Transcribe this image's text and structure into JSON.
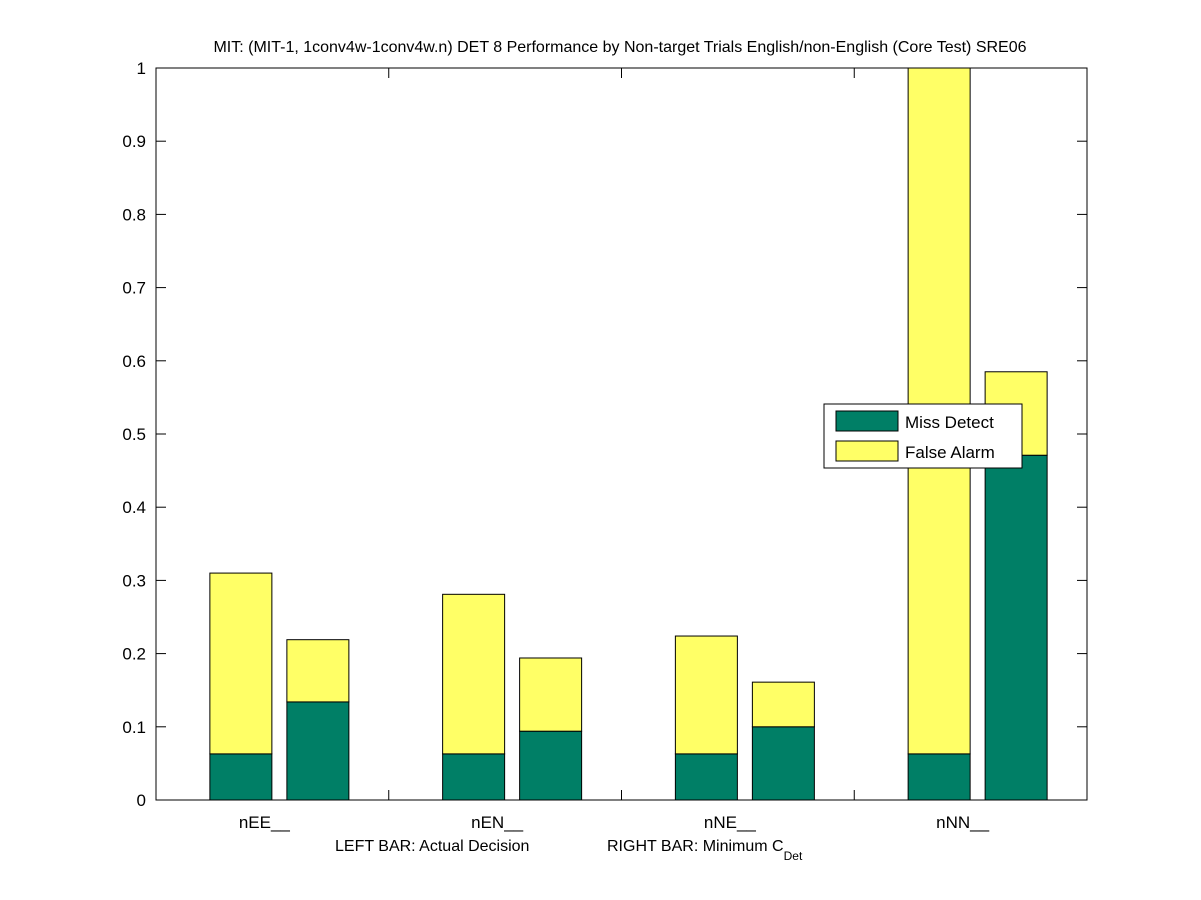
{
  "chart_data": {
    "type": "bar",
    "stacked": true,
    "title": "MIT: (MIT-1, 1conv4w-1conv4w.n) DET 8 Performance by Non-target Trials English/non-English (Core Test) SRE06",
    "xlabel_left": "LEFT BAR: Actual Decision",
    "xlabel_right": "RIGHT BAR: Minimum C",
    "xlabel_right_subscript": "Det",
    "ylabel": "",
    "ylim": [
      0,
      1
    ],
    "yticks": [
      "0",
      "0.1",
      "0.2",
      "0.3",
      "0.4",
      "0.5",
      "0.6",
      "0.7",
      "0.8",
      "0.9",
      "1"
    ],
    "categories": [
      "nEE__",
      "nEN__",
      "nNE__",
      "nNN__"
    ],
    "bar_roles": [
      "Actual Decision",
      "Minimum CDet"
    ],
    "series": [
      {
        "name": "Miss Detect",
        "color": "#007f66",
        "actual": [
          0.063,
          0.063,
          0.063,
          0.063
        ],
        "minimum": [
          0.134,
          0.094,
          0.1,
          0.471
        ]
      },
      {
        "name": "False Alarm",
        "color": "#ffff66",
        "actual": [
          0.247,
          0.218,
          0.161,
          0.937
        ],
        "minimum": [
          0.085,
          0.1,
          0.061,
          0.114
        ]
      }
    ],
    "totals": {
      "actual": [
        0.31,
        0.281,
        0.224,
        1.0
      ],
      "minimum": [
        0.219,
        0.194,
        0.161,
        0.585
      ]
    },
    "legend": {
      "placement": "center-right",
      "entries": [
        "Miss Detect",
        "False Alarm"
      ]
    },
    "grid": false
  }
}
